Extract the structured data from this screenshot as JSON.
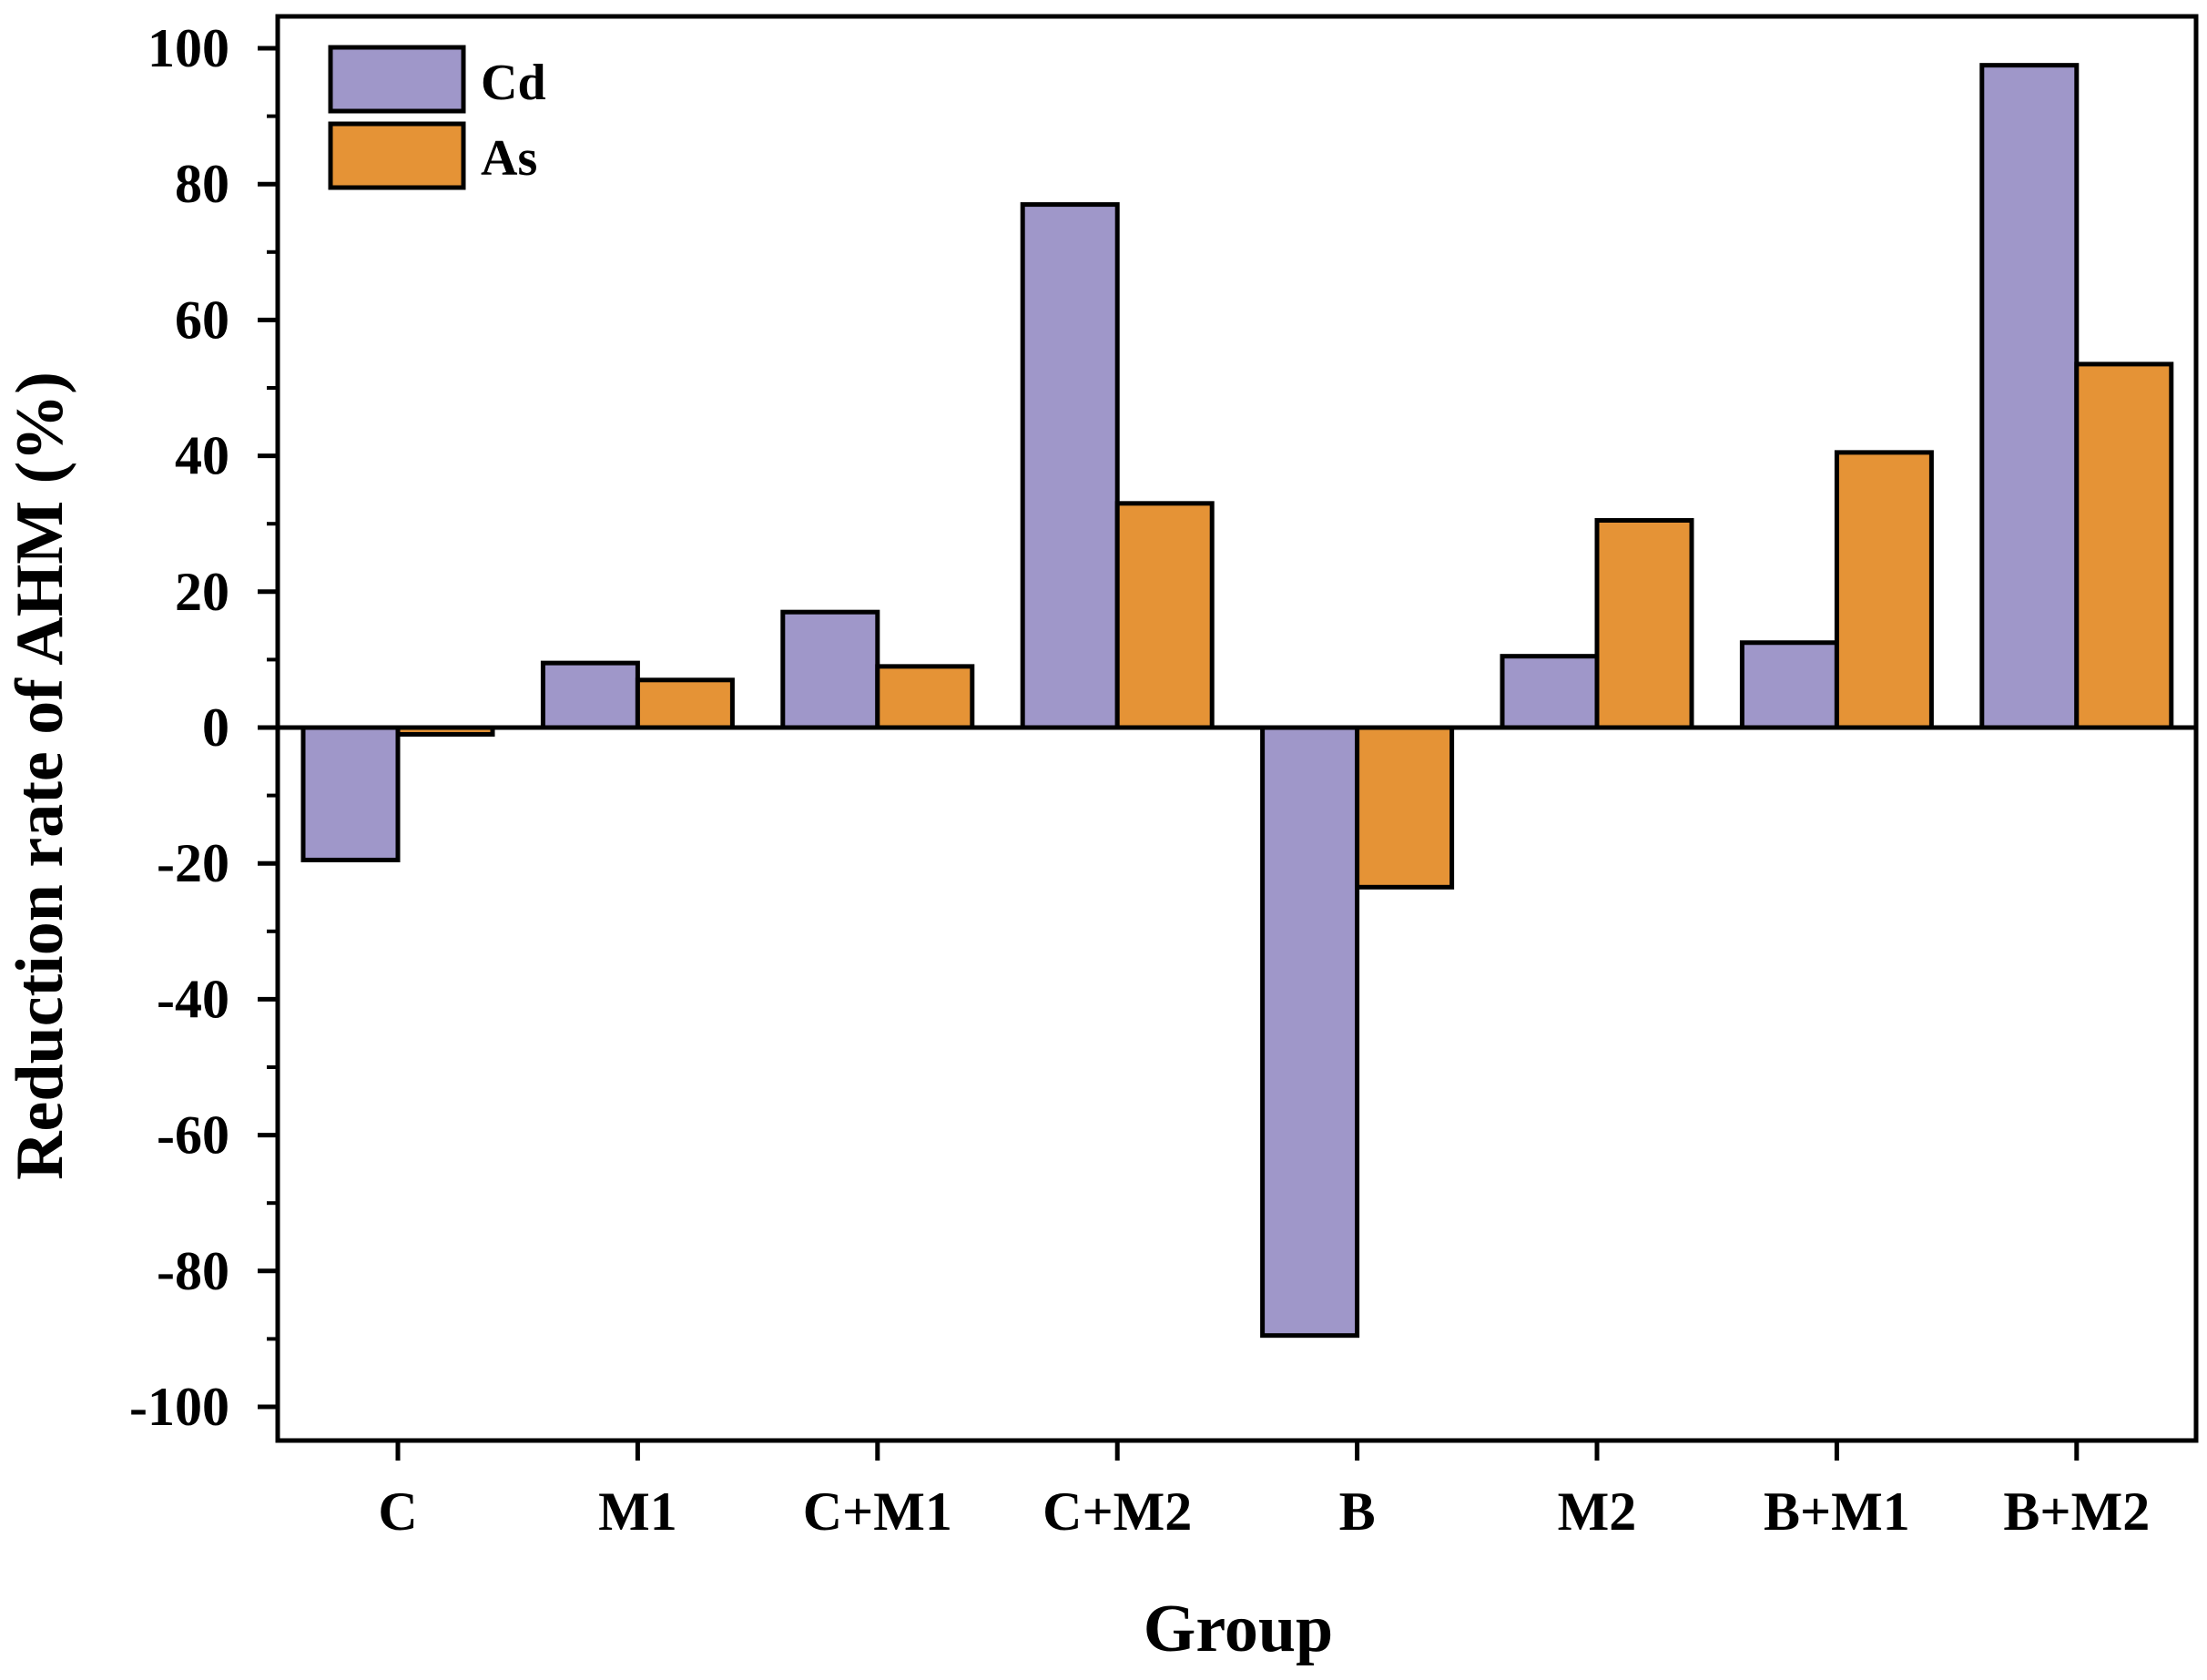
{
  "colors": {
    "cd": "#9f97c9",
    "as": "#e59336",
    "axis": "#000000"
  },
  "chart_data": {
    "type": "bar",
    "title": "",
    "xlabel": "Group",
    "ylabel": "Reduction rate of AHM (%)",
    "ylim": [
      -105,
      105
    ],
    "yticks": [
      100,
      80,
      60,
      40,
      20,
      0,
      -20,
      -40,
      -60,
      -80,
      -100
    ],
    "ytick_labels": [
      "100",
      "80",
      "60",
      "40",
      "20",
      "0",
      "-20",
      "-40",
      "-60",
      "-80",
      "-100"
    ],
    "categories": [
      "C",
      "M1",
      "C+M1",
      "C+M2",
      "B",
      "M2",
      "B+M1",
      "B+M2"
    ],
    "series": [
      {
        "name": "Cd",
        "color": "#9f97c9",
        "values": [
          -19.5,
          9.5,
          17.0,
          77.0,
          -89.5,
          10.5,
          12.5,
          97.5
        ]
      },
      {
        "name": "As",
        "color": "#e59336",
        "values": [
          -1.0,
          7.0,
          9.0,
          33.0,
          -23.5,
          30.5,
          40.5,
          53.5
        ]
      }
    ],
    "legend": {
      "position": "top-left",
      "entries": [
        "Cd",
        "As"
      ]
    },
    "grid": false
  }
}
